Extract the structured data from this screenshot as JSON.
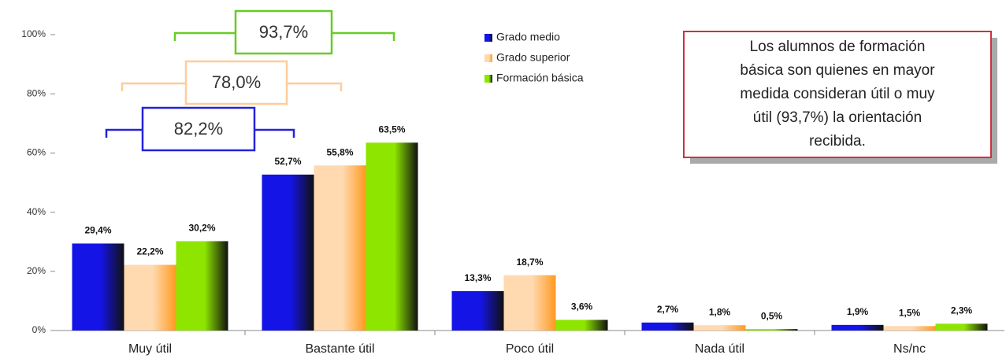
{
  "chart_data": {
    "type": "bar",
    "categories": [
      "Muy útil",
      "Bastante útil",
      "Poco útil",
      "Nada útil",
      "Ns/nc"
    ],
    "series": [
      {
        "name": "Grado medio",
        "color": "#1414e6",
        "values": [
          29.4,
          52.7,
          13.3,
          2.7,
          1.9
        ],
        "value_labels": [
          "29,4%",
          "52,7%",
          "13,3%",
          "2,7%",
          "1,9%"
        ]
      },
      {
        "name": "Grado superior",
        "color": "#ffd9b0",
        "values": [
          22.2,
          55.8,
          18.7,
          1.8,
          1.5
        ],
        "value_labels": [
          "22,2%",
          "55,8%",
          "18,7%",
          "1,8%",
          "1,5%"
        ]
      },
      {
        "name": "Formación básica",
        "color": "#8ee600",
        "values": [
          30.2,
          63.5,
          3.6,
          0.5,
          2.3
        ],
        "value_labels": [
          "30,2%",
          "63,5%",
          "3,6%",
          "0,5%",
          "2,3%"
        ]
      }
    ],
    "ylim": [
      0,
      100
    ],
    "yticks": [
      {
        "value": 0,
        "label": "0%"
      },
      {
        "value": 20,
        "label": "20%"
      },
      {
        "value": 40,
        "label": "40%"
      },
      {
        "value": 60,
        "label": "60%"
      },
      {
        "value": 80,
        "label": "80%"
      },
      {
        "value": 100,
        "label": "100%"
      }
    ],
    "legend": "top-center",
    "brackets": [
      {
        "text": "93,7%",
        "color": "#66cc22"
      },
      {
        "text": "78,0%",
        "color": "#ffcc99"
      },
      {
        "text": "82,2%",
        "color": "#2222dd"
      }
    ],
    "note": [
      "Los alumnos de formación",
      "básica son quienes en mayor",
      "medida consideran útil o muy",
      "útil (93,7%) la orientación",
      "recibida."
    ]
  }
}
